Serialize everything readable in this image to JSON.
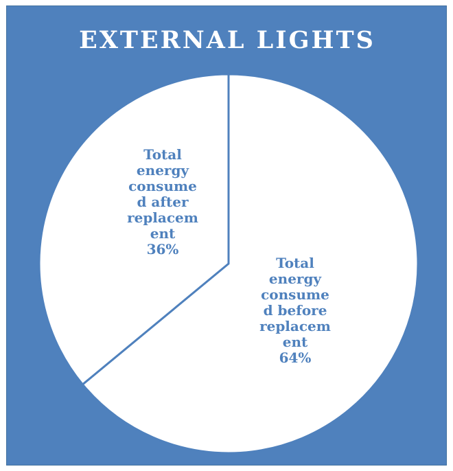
{
  "chart_data": {
    "type": "pie",
    "title": "EXTERNAL LIGHTS",
    "slices": [
      {
        "label_lines": [
          "Total",
          "energy",
          "consume",
          "d before",
          "replacem",
          "ent",
          "64%"
        ],
        "value": 64
      },
      {
        "label_lines": [
          "Total",
          "energy",
          "consume",
          "d after",
          "replacem",
          "ent",
          "36%"
        ],
        "value": 36
      }
    ],
    "start": "12 o'clock, clockwise",
    "legend": "none",
    "colors": {
      "background": "#4f81bd",
      "slice_fill": "#ffffff",
      "slice_border": "#4f81bd",
      "label": "#4f81bd",
      "title": "#ffffff"
    }
  }
}
